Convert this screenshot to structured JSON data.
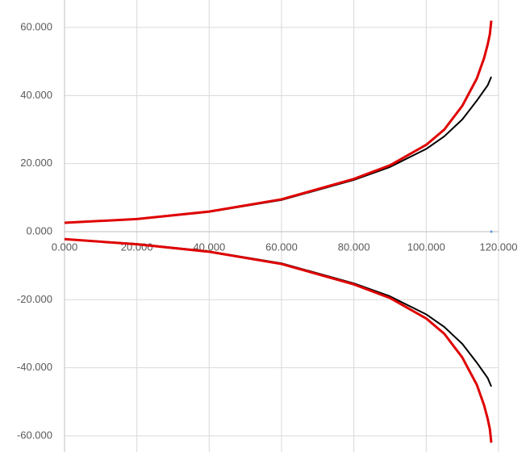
{
  "chart_data": {
    "type": "scatter-line",
    "xlim": [
      0,
      120
    ],
    "ylim": [
      -60,
      60
    ],
    "xticks": [
      {
        "value": 0,
        "label": "0.000"
      },
      {
        "value": 20,
        "label": "20.000"
      },
      {
        "value": 40,
        "label": "40.000"
      },
      {
        "value": 60,
        "label": "60.000"
      },
      {
        "value": 80,
        "label": "80.000"
      },
      {
        "value": 100,
        "label": "100.000"
      },
      {
        "value": 120,
        "label": "120.000"
      }
    ],
    "yticks": [
      {
        "value": 60,
        "label": "60.000"
      },
      {
        "value": 40,
        "label": "40.000"
      },
      {
        "value": 20,
        "label": "20.000"
      },
      {
        "value": 0,
        "label": "0.000"
      },
      {
        "value": -20,
        "label": "-20.000"
      },
      {
        "value": -40,
        "label": "-40.000"
      },
      {
        "value": -60,
        "label": "-60.000"
      }
    ],
    "grid": true,
    "series": [
      {
        "color": "#000000",
        "x": [
          0,
          20,
          40,
          60,
          80,
          90,
          100,
          105,
          110,
          114,
          116,
          117,
          118
        ],
        "values": [
          2.6,
          3.7,
          5.8,
          9.3,
          15.2,
          19,
          24.3,
          28,
          33,
          38.5,
          41.5,
          43,
          45.5
        ]
      },
      {
        "color": "#e00000",
        "x": [
          0,
          20,
          40,
          60,
          80,
          90,
          100,
          105,
          110,
          114,
          116,
          117,
          117.6,
          118
        ],
        "values": [
          2.6,
          3.7,
          5.9,
          9.5,
          15.5,
          19.5,
          25.5,
          30,
          37,
          45,
          51,
          55,
          58,
          62
        ]
      },
      {
        "color": "#000000",
        "x": [
          0,
          20,
          40,
          60,
          80,
          90,
          100,
          105,
          110,
          114,
          116,
          117,
          118
        ],
        "values": [
          -2.2,
          -3.6,
          -5.8,
          -9.3,
          -15.2,
          -19,
          -24.3,
          -28,
          -33,
          -38.5,
          -41.5,
          -43,
          -45.5
        ]
      },
      {
        "color": "#e00000",
        "x": [
          0,
          20,
          40,
          60,
          80,
          90,
          100,
          105,
          110,
          114,
          116,
          117,
          117.6,
          118
        ],
        "values": [
          -2.2,
          -3.7,
          -5.9,
          -9.5,
          -15.5,
          -19.5,
          -25.5,
          -30,
          -37,
          -45,
          -51,
          -55,
          -58,
          -62
        ]
      },
      {
        "color": "#5b9bd5",
        "x": [
          118
        ],
        "values": [
          0
        ],
        "marker": true
      }
    ]
  }
}
